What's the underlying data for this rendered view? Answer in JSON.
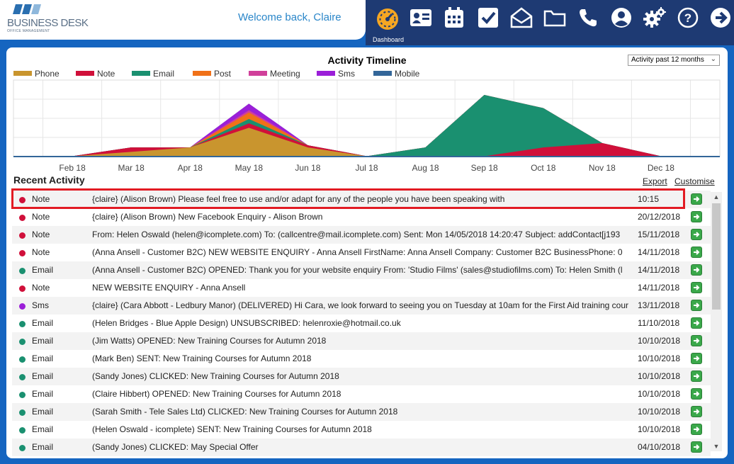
{
  "header": {
    "brand": "BUSINESS DESK",
    "tagline": "OFFICE MANAGEMENT",
    "welcome": "Welcome back, Claire",
    "nav_active_label": "Dashboard",
    "nav_icons": [
      "dashboard-gauge-icon",
      "contacts-card-icon",
      "calendar-icon",
      "tasks-check-icon",
      "mail-open-icon",
      "folder-icon",
      "phone-icon",
      "user-account-icon",
      "settings-gears-icon",
      "help-icon",
      "logout-arrow-icon"
    ],
    "accent": "#f5a623",
    "navy": "#1e3a73"
  },
  "chart_data": {
    "type": "area",
    "title": "Activity Timeline",
    "range_select": "Activity past 12 months",
    "categories": [
      "Feb 18",
      "Mar 18",
      "Apr 18",
      "May 18",
      "Jun 18",
      "Jul 18",
      "Aug 18",
      "Sep 18",
      "Oct 18",
      "Nov 18",
      "Dec 18"
    ],
    "ylim": [
      0,
      35
    ],
    "grid": true,
    "legend_position": "top-left",
    "series": [
      {
        "name": "Phone",
        "color": "#c9952e",
        "values": [
          0,
          2,
          4,
          13,
          4,
          0,
          0,
          0,
          0,
          0,
          0
        ]
      },
      {
        "name": "Note",
        "color": "#d0103a",
        "values": [
          0,
          2,
          0,
          2,
          1,
          0,
          0,
          0,
          4,
          6,
          0
        ]
      },
      {
        "name": "Email",
        "color": "#1a9070",
        "values": [
          0,
          0,
          0,
          2,
          0,
          0,
          4,
          28,
          18,
          0,
          0
        ]
      },
      {
        "name": "Post",
        "color": "#f07118",
        "values": [
          0,
          0,
          0,
          3,
          0,
          0,
          0,
          0,
          0,
          0,
          0
        ]
      },
      {
        "name": "Meeting",
        "color": "#d0409a",
        "values": [
          0,
          0,
          0,
          1,
          0,
          0,
          0,
          0,
          0,
          0,
          0
        ]
      },
      {
        "name": "Sms",
        "color": "#9b1fd8",
        "values": [
          0,
          0,
          0,
          3,
          0,
          0,
          0,
          0,
          0,
          0,
          0
        ]
      },
      {
        "name": "Mobile",
        "color": "#336699",
        "values": [
          0,
          0,
          0,
          0,
          0,
          0,
          0,
          0,
          0,
          0,
          0
        ]
      }
    ]
  },
  "recent": {
    "title": "Recent Activity",
    "export_label": "Export",
    "customise_label": "Customise",
    "rows": [
      {
        "type": "Note",
        "color": "#d0103a",
        "desc": "{claire} (Alison Brown) Please feel free to use and/or adapt for any of the people you have been speaking with",
        "date": "10:15"
      },
      {
        "type": "Note",
        "color": "#d0103a",
        "desc": "{claire} (Alison Brown) New Facebook Enquiry - Alison Brown",
        "date": "20/12/2018"
      },
      {
        "type": "Note",
        "color": "#d0103a",
        "desc": "From: Helen Oswald (helen@icomplete.com) To: (callcentre@mail.icomplete.com) Sent: Mon 14/05/2018 14:20:47 Subject: addContact[j193",
        "date": "15/11/2018"
      },
      {
        "type": "Note",
        "color": "#d0103a",
        "desc": "(Anna Ansell - Customer B2C) NEW WEBSITE ENQUIRY - Anna Ansell FirstName: Anna Ansell Company: Customer B2C BusinessPhone: 0",
        "date": "14/11/2018"
      },
      {
        "type": "Email",
        "color": "#1a9070",
        "desc": "(Anna Ansell - Customer B2C) OPENED: Thank you for your website enquiry From: 'Studio Films' (sales@studiofilms.com) To: Helen Smith (l",
        "date": "14/11/2018"
      },
      {
        "type": "Note",
        "color": "#d0103a",
        "desc": "NEW WEBSITE ENQUIRY - Anna Ansell",
        "date": "14/11/2018"
      },
      {
        "type": "Sms",
        "color": "#9b1fd8",
        "desc": "{claire} (Cara Abbott - Ledbury Manor) (DELIVERED) Hi Cara, we look forward to seeing you on Tuesday at 10am for the First Aid training cour",
        "date": "13/11/2018"
      },
      {
        "type": "Email",
        "color": "#1a9070",
        "desc": "(Helen Bridges - Blue Apple Design) UNSUBSCRIBED: helenroxie@hotmail.co.uk",
        "date": "11/10/2018"
      },
      {
        "type": "Email",
        "color": "#1a9070",
        "desc": "(Jim Watts) OPENED: New Training Courses for Autumn 2018",
        "date": "10/10/2018"
      },
      {
        "type": "Email",
        "color": "#1a9070",
        "desc": "(Mark Ben) SENT: New Training Courses for Autumn 2018",
        "date": "10/10/2018"
      },
      {
        "type": "Email",
        "color": "#1a9070",
        "desc": "(Sandy Jones) CLICKED: New Training Courses for Autumn 2018",
        "date": "10/10/2018"
      },
      {
        "type": "Email",
        "color": "#1a9070",
        "desc": "(Claire Hibbert) OPENED: New Training Courses for Autumn 2018",
        "date": "10/10/2018"
      },
      {
        "type": "Email",
        "color": "#1a9070",
        "desc": "(Sarah Smith - Tele Sales Ltd) CLICKED: New Training Courses for Autumn 2018",
        "date": "10/10/2018"
      },
      {
        "type": "Email",
        "color": "#1a9070",
        "desc": "(Helen Oswald - icomplete) SENT: New Training Courses for Autumn 2018",
        "date": "10/10/2018"
      },
      {
        "type": "Email",
        "color": "#1a9070",
        "desc": "(Sandy Jones) CLICKED: May Special Offer",
        "date": "04/10/2018"
      }
    ]
  }
}
